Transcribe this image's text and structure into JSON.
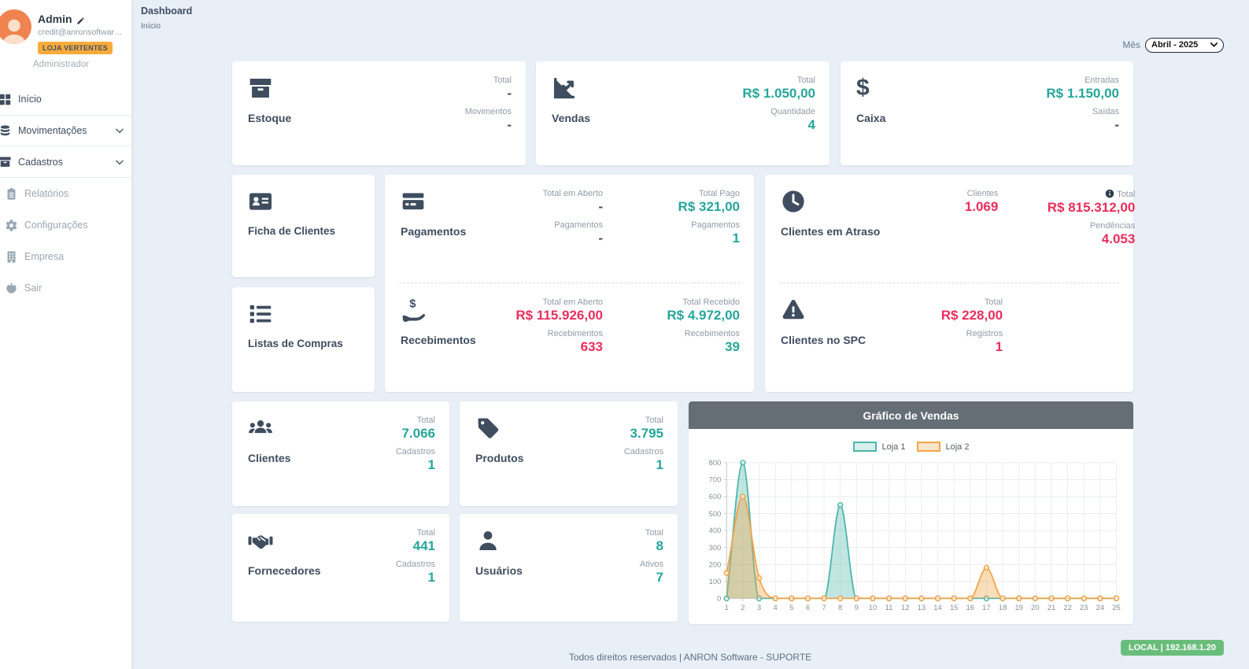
{
  "colors": {
    "accent_teal": "#26a69a",
    "accent_red": "#ea2e5d",
    "store_badge_orange": "#f7ab3a",
    "env_badge_green": "#69bd7b",
    "chart_header_gray": "#656d75",
    "loja1_teal": "#4db6ac",
    "loja2_orange": "#f2a54a"
  },
  "sidebar": {
    "profile": {
      "name": "Admin",
      "email": "credit@anronsoftware.co...",
      "store_badge": "LOJA VERTENTES",
      "role": "Administrador"
    },
    "items": [
      {
        "label": "Início",
        "icon": "grid-icon"
      },
      {
        "label": "Movimentações",
        "icon": "coins-icon"
      },
      {
        "label": "Cadastros",
        "icon": "archive-icon"
      },
      {
        "label": "Relatórios",
        "icon": "clipboard-icon"
      },
      {
        "label": "Configurações",
        "icon": "gear-icon"
      },
      {
        "label": "Empresa",
        "icon": "building-icon"
      },
      {
        "label": "Sair",
        "icon": "power-icon"
      }
    ]
  },
  "header": {
    "title": "Dashboard",
    "breadcrumb": "Início",
    "month_label": "Mês",
    "month_value": "Abril - 2025"
  },
  "cards": {
    "estoque": {
      "title": "Estoque",
      "stats": [
        {
          "label": "Total",
          "value": "-"
        },
        {
          "label": "Movimentos",
          "value": "-"
        }
      ]
    },
    "vendas": {
      "title": "Vendas",
      "stats": [
        {
          "label": "Total",
          "value": "R$ 1.050,00"
        },
        {
          "label": "Quantidade",
          "value": "4"
        }
      ]
    },
    "caixa": {
      "title": "Caixa",
      "stats": [
        {
          "label": "Entradas",
          "value": "R$ 1.150,00"
        },
        {
          "label": "Saídas",
          "value": "-"
        }
      ]
    },
    "ficha_clientes": {
      "title": "Ficha de Clientes"
    },
    "listas_compras": {
      "title": "Listas de Compras"
    },
    "pagamentos": {
      "title": "Pagamentos",
      "col1": [
        {
          "label": "Total em Aberto",
          "value": "-"
        },
        {
          "label": "Pagamentos",
          "value": "-"
        }
      ],
      "col2": [
        {
          "label": "Total Pago",
          "value": "R$ 321,00"
        },
        {
          "label": "Pagamentos",
          "value": "1"
        }
      ]
    },
    "recebimentos": {
      "title": "Recebimentos",
      "col1": [
        {
          "label": "Total em Aberto",
          "value": "R$ 115.926,00"
        },
        {
          "label": "Recebimentos",
          "value": "633"
        }
      ],
      "col2": [
        {
          "label": "Total Recebido",
          "value": "R$ 4.972,00"
        },
        {
          "label": "Recebimentos",
          "value": "39"
        }
      ]
    },
    "clientes_atraso": {
      "title": "Clientes em Atraso",
      "col1": [
        {
          "label": "Clientes",
          "value": "1.069"
        }
      ],
      "col2": [
        {
          "label": "Total",
          "value": "R$ 815.312,00"
        },
        {
          "label": "Pendências",
          "value": "4.053"
        }
      ]
    },
    "clientes_spc": {
      "title": "Clientes no SPC",
      "stats": [
        {
          "label": "Total",
          "value": "R$ 228,00"
        },
        {
          "label": "Registros",
          "value": "1"
        }
      ]
    },
    "clientes": {
      "title": "Clientes",
      "stats": [
        {
          "label": "Total",
          "value": "7.066"
        },
        {
          "label": "Cadastros",
          "value": "1"
        }
      ]
    },
    "produtos": {
      "title": "Produtos",
      "stats": [
        {
          "label": "Total",
          "value": "3.795"
        },
        {
          "label": "Cadastros",
          "value": "1"
        }
      ]
    },
    "fornecedores": {
      "title": "Fornecedores",
      "stats": [
        {
          "label": "Total",
          "value": "441"
        },
        {
          "label": "Cadastros",
          "value": "1"
        }
      ]
    },
    "usuarios": {
      "title": "Usuários",
      "stats": [
        {
          "label": "Total",
          "value": "8"
        },
        {
          "label": "Ativos",
          "value": "7"
        }
      ]
    }
  },
  "chart_data": {
    "type": "area",
    "title": "Gráfico de Vendas",
    "x": [
      1,
      2,
      3,
      4,
      5,
      6,
      7,
      8,
      9,
      10,
      11,
      12,
      13,
      14,
      15,
      16,
      17,
      18,
      19,
      20,
      21,
      22,
      23,
      24,
      25
    ],
    "ylim": [
      0,
      800
    ],
    "ytick_step": 100,
    "grid": true,
    "legend_position": "top",
    "series": [
      {
        "name": "Loja 1",
        "color": "#4db6ac",
        "fill": "rgba(77,182,172,0.35)",
        "values": [
          0,
          800,
          0,
          0,
          0,
          0,
          0,
          550,
          0,
          0,
          0,
          0,
          0,
          0,
          0,
          0,
          0,
          0,
          0,
          0,
          0,
          0,
          0,
          0,
          0
        ]
      },
      {
        "name": "Loja 2",
        "color": "#f2a54a",
        "fill": "rgba(242,165,74,0.38)",
        "values": [
          150,
          600,
          120,
          0,
          0,
          0,
          0,
          0,
          0,
          0,
          0,
          0,
          0,
          0,
          0,
          0,
          180,
          0,
          0,
          0,
          0,
          0,
          0,
          0,
          0
        ]
      }
    ]
  },
  "footer": {
    "copyright": "Todos direitos reservados | ANRON Software - SUPORTE",
    "env_badge": "LOCAL | 192.168.1.20"
  }
}
